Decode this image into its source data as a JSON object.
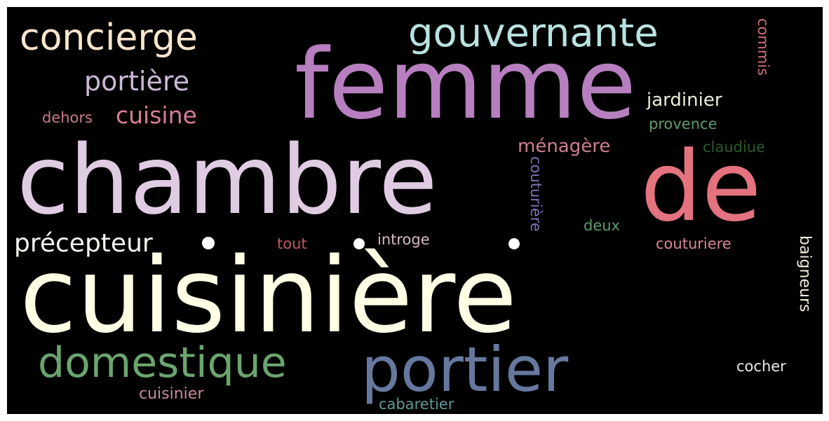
{
  "cloud": {
    "words": {
      "cuisiniere": {
        "text": "cuisinière",
        "color": "#ffffe5"
      },
      "chambre": {
        "text": "chambre",
        "color": "#e0cce2"
      },
      "femme": {
        "text": "femme",
        "color": "#b77fbf"
      },
      "de": {
        "text": "de",
        "color": "#e4737f"
      },
      "portier": {
        "text": "portier",
        "color": "#66789e"
      },
      "domestique": {
        "text": "domestique",
        "color": "#6aa56e"
      },
      "gouvernante": {
        "text": "gouvernante",
        "color": "#b9e2e0"
      },
      "concierge": {
        "text": "concierge",
        "color": "#f9e5cd"
      },
      "portiere": {
        "text": "portière",
        "color": "#cbb9d6"
      },
      "cuisine": {
        "text": "cuisine",
        "color": "#d97d9a"
      },
      "dehors": {
        "text": "dehors",
        "color": "#c8798e"
      },
      "precepteur": {
        "text": "précepteur",
        "color": "#f6f6f0"
      },
      "jardinier": {
        "text": "jardinier",
        "color": "#ececd8"
      },
      "provence": {
        "text": "provence",
        "color": "#5e9c66"
      },
      "menagere": {
        "text": "ménagère",
        "color": "#cf7d93"
      },
      "claudiue": {
        "text": "claudiue",
        "color": "#2b5a2e"
      },
      "couturiere_v": {
        "text": "couturière",
        "color": "#7c73b8"
      },
      "deux": {
        "text": "deux",
        "color": "#5e9c66"
      },
      "tout": {
        "text": "tout",
        "color": "#c0585f"
      },
      "introge": {
        "text": "introge",
        "color": "#d9b7c7"
      },
      "couturiere": {
        "text": "couturiere",
        "color": "#d9869c"
      },
      "commis": {
        "text": "commis",
        "color": "#cf6f7c"
      },
      "baigneurs": {
        "text": "baigneurs",
        "color": "#f5eddc"
      },
      "cocher": {
        "text": "cocher",
        "color": "#eaeaea"
      },
      "cuisinier": {
        "text": "cuisinier",
        "color": "#c78aa0"
      },
      "cabaretier": {
        "text": "cabaretier",
        "color": "#5c9a98"
      }
    },
    "dots_color": "#ffffff"
  }
}
